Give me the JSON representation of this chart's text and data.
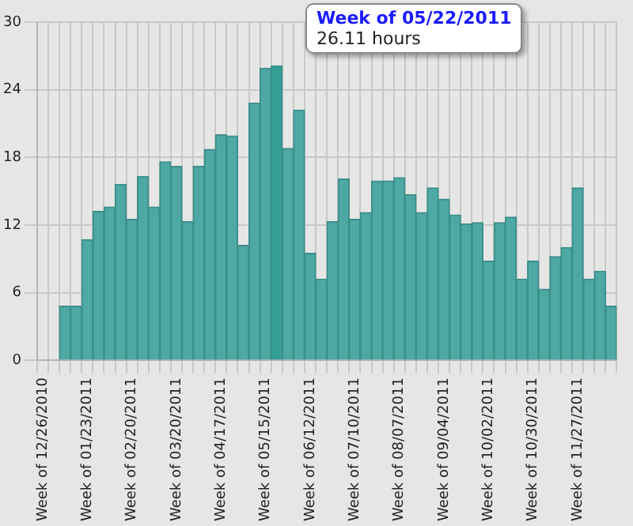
{
  "chart_data": {
    "type": "bar",
    "categories": [
      "Week of 12/26/2010",
      null,
      null,
      null,
      "Week of 01/23/2011",
      null,
      null,
      null,
      "Week of 02/20/2011",
      null,
      null,
      null,
      "Week of 03/20/2011",
      null,
      null,
      null,
      "Week of 04/17/2011",
      null,
      null,
      null,
      "Week of 05/15/2011",
      null,
      null,
      null,
      "Week of 06/12/2011",
      null,
      null,
      null,
      "Week of 07/10/2011",
      null,
      null,
      null,
      "Week of 08/07/2011",
      null,
      null,
      null,
      "Week of 09/04/2011",
      null,
      null,
      null,
      "Week of 10/02/2011",
      null,
      null,
      null,
      "Week of 10/30/2011",
      null,
      null,
      null,
      "Week of 11/27/2011",
      null,
      null,
      null
    ],
    "values": [
      0,
      0,
      4.8,
      4.8,
      10.7,
      13.2,
      13.6,
      15.6,
      12.5,
      16.3,
      13.6,
      17.6,
      17.2,
      12.3,
      17.2,
      18.7,
      20.0,
      19.9,
      10.2,
      22.8,
      25.9,
      26.11,
      18.8,
      22.2,
      9.5,
      7.2,
      12.3,
      16.1,
      12.5,
      13.1,
      15.9,
      15.9,
      16.2,
      14.7,
      13.1,
      15.3,
      14.3,
      12.9,
      12.1,
      12.2,
      8.8,
      12.2,
      12.7,
      7.2,
      8.8,
      6.3,
      9.2,
      10.0,
      15.3,
      7.2,
      7.9,
      4.8
    ],
    "colors": [
      "#4ea8a3",
      "#4ea8a3",
      "#4ea8a3",
      "#4ea8a3",
      "#4ea8a3",
      "#4ea8a3",
      "#4ea8a3",
      "#4ea8a3",
      "#4ea8a3",
      "#4ea8a3",
      "#4ea8a3",
      "#4ea8a3",
      "#4ea8a3",
      "#4ea8a3",
      "#4ea8a3",
      "#4ea8a3",
      "#4ea8a3",
      "#4ea8a3",
      "#4ea8a3",
      "#4ea8a3",
      "#4ea8a3",
      "#33a098",
      "#4ea8a3",
      "#4ea8a3",
      "#4ea8a3",
      "#4ea8a3",
      "#4ea8a3",
      "#4ea8a3",
      "#4ea8a3",
      "#4ea8a3",
      "#4ea8a3",
      "#4ea8a3",
      "#4ea8a3",
      "#4ea8a3",
      "#4ea8a3",
      "#4ea8a3",
      "#4ea8a3",
      "#4ea8a3",
      "#4ea8a3",
      "#4ea8a3",
      "#4ea8a3",
      "#4ea8a3",
      "#4ea8a3",
      "#4ea8a3",
      "#4ea8a3",
      "#4ea8a3",
      "#4ea8a3",
      "#4ea8a3",
      "#4ea8a3",
      "#4ea8a3",
      "#4ea8a3",
      "#4ea8a3"
    ],
    "ylim": [
      0,
      30
    ],
    "yticks": [
      0,
      6,
      12,
      18,
      24,
      30
    ],
    "grid": true,
    "legend": false,
    "annotations": [
      "Week of 05/22/2011",
      "26.11 hours"
    ]
  }
}
